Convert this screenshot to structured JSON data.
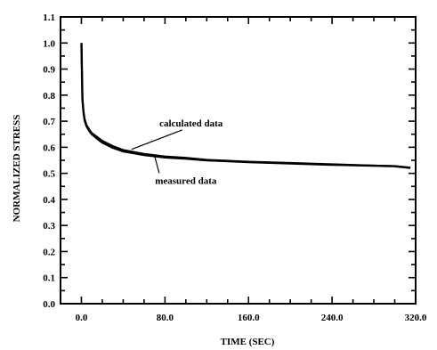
{
  "chart_data": {
    "type": "line",
    "xlabel": "TIME (SEC)",
    "ylabel": "NORMALIZED STRESS",
    "xlim": [
      -20,
      320
    ],
    "ylim": [
      0.0,
      1.1
    ],
    "x_ticks": [
      "0.0",
      "80.0",
      "160.0",
      "240.0",
      "320.0"
    ],
    "x_tick_values": [
      0,
      80,
      160,
      240,
      320
    ],
    "y_ticks": [
      "0.0",
      "0.1",
      "0.2",
      "0.3",
      "0.4",
      "0.5",
      "0.6",
      "0.7",
      "0.8",
      "0.9",
      "1.0",
      "1.1"
    ],
    "y_tick_values": [
      0.0,
      0.1,
      0.2,
      0.3,
      0.4,
      0.5,
      0.6,
      0.7,
      0.8,
      0.9,
      1.0,
      1.1
    ],
    "grid": false,
    "series": [
      {
        "name": "calculated data",
        "color": "#000000",
        "x": [
          0,
          1,
          2,
          3,
          5,
          8,
          10,
          15,
          20,
          30,
          40,
          60,
          80,
          100,
          120,
          160,
          200,
          240,
          280,
          300,
          315
        ],
        "y": [
          1.0,
          0.79,
          0.74,
          0.71,
          0.685,
          0.665,
          0.655,
          0.64,
          0.625,
          0.605,
          0.59,
          0.575,
          0.565,
          0.56,
          0.552,
          0.545,
          0.54,
          0.535,
          0.53,
          0.528,
          0.522
        ]
      },
      {
        "name": "measured data",
        "color": "#000000",
        "x": [
          0,
          1,
          2,
          3,
          5,
          8,
          10,
          15,
          20,
          30,
          40,
          60,
          80,
          100,
          120,
          160,
          200,
          240,
          280,
          300,
          315
        ],
        "y": [
          1.0,
          0.785,
          0.735,
          0.705,
          0.68,
          0.66,
          0.65,
          0.633,
          0.618,
          0.598,
          0.584,
          0.57,
          0.561,
          0.556,
          0.55,
          0.543,
          0.538,
          0.533,
          0.529,
          0.527,
          0.521
        ]
      }
    ],
    "annotations": [
      {
        "text": "calculated data",
        "x": 105,
        "y": 0.68,
        "arrow_to": {
          "x": 48,
          "y": 0.592
        }
      },
      {
        "text": "measured data",
        "x": 100,
        "y": 0.46,
        "arrow_to": {
          "x": 70,
          "y": 0.568
        }
      }
    ]
  }
}
